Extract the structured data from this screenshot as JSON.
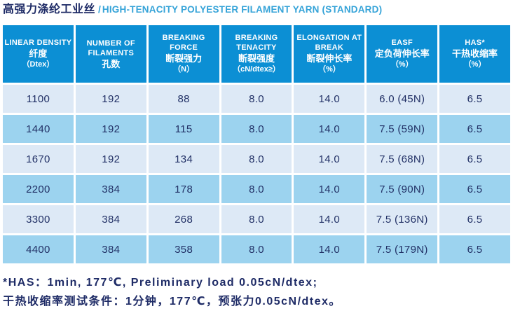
{
  "title": {
    "cn": "高强力涤纶工业丝",
    "sep": "/",
    "en": "HIGH-TENACITY POLYESTER FILAMENT YARN (STANDARD)"
  },
  "colors": {
    "header_bg": "#0c8fd4",
    "row_light": "#dde9f6",
    "row_dark": "#9cd3ef",
    "text_navy": "#223166",
    "title_accent_blue": "#35a3d8"
  },
  "chart_data": {
    "type": "table",
    "title": "高强力涤纶工业丝 / HIGH-TENACITY POLYESTER FILAMENT YARN (STANDARD)",
    "columns": [
      "LINEAR DENSITY 纤度 (Dtex)",
      "NUMBER OF FILAMENTS 孔数",
      "BREAKING FORCE 断裂强力 (N)",
      "BREAKING TENACITY 断裂强度 (cN/dtex≥)",
      "ELONGATION AT BREAK 断裂伸长率 (%)",
      "EASF 定负荷伸长率 (%)",
      "HAS* 干热收缩率 (%)"
    ],
    "rows": [
      [
        "1100",
        "192",
        "88",
        "8.0",
        "14.0",
        "6.0 (45N)",
        "6.5"
      ],
      [
        "1440",
        "192",
        "115",
        "8.0",
        "14.0",
        "7.5 (59N)",
        "6.5"
      ],
      [
        "1670",
        "192",
        "134",
        "8.0",
        "14.0",
        "7.5 (68N)",
        "6.5"
      ],
      [
        "2200",
        "384",
        "178",
        "8.0",
        "14.0",
        "7.5 (90N)",
        "6.5"
      ],
      [
        "3300",
        "384",
        "268",
        "8.0",
        "14.0",
        "7.5 (136N)",
        "6.5"
      ],
      [
        "4400",
        "384",
        "358",
        "8.0",
        "14.0",
        "7.5 (179N)",
        "6.5"
      ]
    ]
  },
  "table": {
    "headers": [
      {
        "en": "LINEAR DENSITY",
        "cn": "纤度",
        "unit": "（Dtex）"
      },
      {
        "en": "NUMBER OF FILAMENTS",
        "cn": "孔数",
        "unit": ""
      },
      {
        "en": "BREAKING FORCE",
        "cn": "断裂强力",
        "unit": "（N）"
      },
      {
        "en": "BREAKING TENACITY",
        "cn": "断裂强度",
        "unit": "（cN/dtex≥）"
      },
      {
        "en": "ELONGATION AT BREAK",
        "cn": "断裂伸长率",
        "unit": "（%）"
      },
      {
        "en": "EASF",
        "cn": "定负荷伸长率",
        "unit": "（%）"
      },
      {
        "en": "HAS*",
        "cn": "干热收缩率",
        "unit": "（%）"
      }
    ],
    "rows": [
      {
        "cells": [
          "1100",
          "192",
          "88",
          "8.0",
          "14.0",
          "6.0 (45N)",
          "6.5"
        ]
      },
      {
        "cells": [
          "1440",
          "192",
          "115",
          "8.0",
          "14.0",
          "7.5 (59N)",
          "6.5"
        ]
      },
      {
        "cells": [
          "1670",
          "192",
          "134",
          "8.0",
          "14.0",
          "7.5 (68N)",
          "6.5"
        ]
      },
      {
        "cells": [
          "2200",
          "384",
          "178",
          "8.0",
          "14.0",
          "7.5 (90N)",
          "6.5"
        ]
      },
      {
        "cells": [
          "3300",
          "384",
          "268",
          "8.0",
          "14.0",
          "7.5 (136N)",
          "6.5"
        ]
      },
      {
        "cells": [
          "4400",
          "384",
          "358",
          "8.0",
          "14.0",
          "7.5 (179N)",
          "6.5"
        ]
      }
    ]
  },
  "footnotes": {
    "line1": "*HAS：1min, 177℃, Preliminary load 0.05cN/dtex;",
    "line2": "干热收缩率测试条件：1分钟，177℃，预张力0.05cN/dtex。"
  }
}
